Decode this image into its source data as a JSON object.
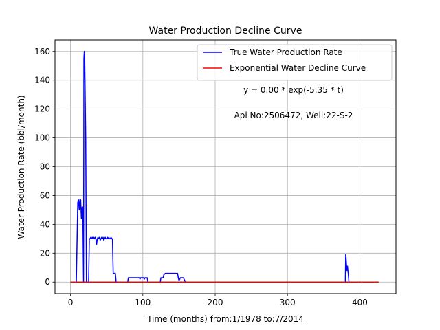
{
  "chart_data": {
    "type": "line",
    "title": "Water Production Decline Curve",
    "xlabel": "Time (months) from:1/1978 to:7/2014",
    "ylabel": "Water Production Rate (bbl/month)",
    "xlim": [
      -21.5,
      450
    ],
    "ylim": [
      -8,
      168
    ],
    "xticks": [
      0,
      100,
      200,
      300,
      400
    ],
    "yticks": [
      0,
      20,
      40,
      60,
      80,
      100,
      120,
      140,
      160
    ],
    "grid": true,
    "legend_position": "top-right",
    "annotations": [
      "y = 0.00 * exp(-5.35 * t)",
      "Api No:2506472, Well:22-S-2"
    ],
    "series": [
      {
        "name": "True Water Production Rate",
        "color": "#0000ff",
        "points": [
          [
            0,
            0
          ],
          [
            8,
            0
          ],
          [
            10,
            55
          ],
          [
            11,
            57
          ],
          [
            12,
            50
          ],
          [
            13,
            57
          ],
          [
            14,
            57
          ],
          [
            15,
            44
          ],
          [
            16,
            52
          ],
          [
            17,
            52
          ],
          [
            18,
            0
          ],
          [
            18.5,
            155
          ],
          [
            19,
            160
          ],
          [
            19.5,
            158
          ],
          [
            20,
            140
          ],
          [
            21,
            100
          ],
          [
            22,
            0
          ],
          [
            25,
            0
          ],
          [
            26,
            30
          ],
          [
            27,
            30
          ],
          [
            28,
            31
          ],
          [
            29,
            30
          ],
          [
            30,
            31
          ],
          [
            31,
            30
          ],
          [
            32,
            31
          ],
          [
            33,
            30
          ],
          [
            34,
            31
          ],
          [
            35,
            30
          ],
          [
            36,
            26
          ],
          [
            37,
            30
          ],
          [
            38,
            31
          ],
          [
            39,
            30
          ],
          [
            40,
            31
          ],
          [
            41,
            29
          ],
          [
            42,
            30
          ],
          [
            43,
            31
          ],
          [
            44,
            30
          ],
          [
            45,
            31
          ],
          [
            46,
            29
          ],
          [
            47,
            30
          ],
          [
            48,
            31
          ],
          [
            49,
            30
          ],
          [
            50,
            30
          ],
          [
            51,
            31
          ],
          [
            52,
            30
          ],
          [
            53,
            31
          ],
          [
            54,
            30
          ],
          [
            55,
            30
          ],
          [
            56,
            31
          ],
          [
            57,
            30
          ],
          [
            58,
            30
          ],
          [
            59,
            6
          ],
          [
            60,
            6
          ],
          [
            61,
            6
          ],
          [
            62,
            6
          ],
          [
            63,
            0
          ],
          [
            79,
            0
          ],
          [
            80,
            3
          ],
          [
            85,
            3
          ],
          [
            90,
            3
          ],
          [
            95,
            3
          ],
          [
            96,
            2
          ],
          [
            97,
            3
          ],
          [
            100,
            3
          ],
          [
            101,
            3
          ],
          [
            102,
            2
          ],
          [
            103,
            3
          ],
          [
            105,
            3
          ],
          [
            106,
            3
          ],
          [
            107,
            0
          ],
          [
            124,
            0
          ],
          [
            125,
            3
          ],
          [
            128,
            3
          ],
          [
            129,
            5
          ],
          [
            131,
            6
          ],
          [
            135,
            6
          ],
          [
            140,
            6
          ],
          [
            145,
            6
          ],
          [
            148,
            6
          ],
          [
            149,
            3
          ],
          [
            150,
            1
          ],
          [
            151,
            2
          ],
          [
            152,
            3
          ],
          [
            155,
            3
          ],
          [
            156,
            3
          ],
          [
            157,
            2
          ],
          [
            158,
            1
          ],
          [
            159,
            0
          ],
          [
            380,
            0
          ],
          [
            380.5,
            19
          ],
          [
            381,
            17
          ],
          [
            382,
            8
          ],
          [
            383,
            11
          ],
          [
            384,
            6
          ],
          [
            385,
            0
          ],
          [
            426,
            0
          ]
        ]
      },
      {
        "name": "Exponential Water Decline Curve",
        "color": "#ff0000",
        "points": [
          [
            0,
            0
          ],
          [
            426,
            0
          ]
        ]
      }
    ]
  }
}
